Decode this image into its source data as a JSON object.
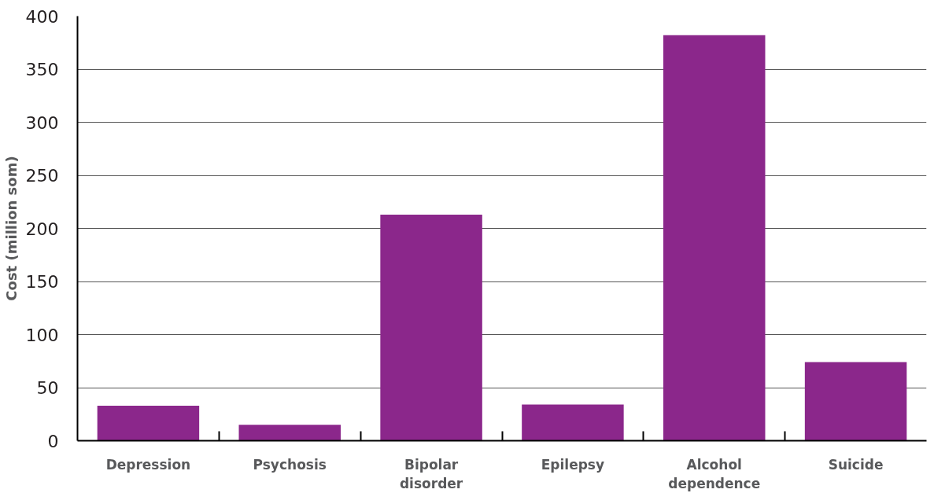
{
  "chart_data": {
    "type": "bar",
    "ylabel": "Cost (million som)",
    "categories": [
      "Depression",
      "Psychosis",
      "Bipolar disorder",
      "Epilepsy",
      "Alcohol dependence",
      "Suicide"
    ],
    "values": [
      33,
      15,
      213,
      34,
      382,
      74
    ],
    "color": "#8b278b",
    "ylim": [
      0,
      400
    ],
    "yticks": [
      0,
      50,
      100,
      150,
      200,
      250,
      300,
      350,
      400
    ],
    "grid": "y"
  }
}
